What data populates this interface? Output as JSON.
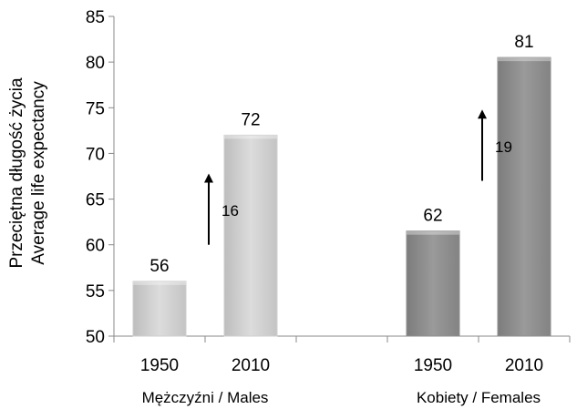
{
  "chart_data": {
    "type": "bar",
    "ylabel": [
      "Przeciętna długość życia",
      "Average life expectancy"
    ],
    "ylim": [
      50,
      85
    ],
    "yticks": [
      50,
      55,
      60,
      65,
      70,
      75,
      80,
      85
    ],
    "grid": false,
    "groups": [
      {
        "label": "Mężczyźni / Males",
        "color": "#cfcfcf",
        "bars": [
          {
            "category": "1950",
            "value": 56,
            "label": "56"
          },
          {
            "category": "2010",
            "value": 72,
            "label": "72"
          }
        ],
        "annotation": {
          "text": "16",
          "from": 60,
          "to": 67.5
        }
      },
      {
        "label": "Kobiety / Females",
        "color": "#8f8f8f",
        "bars": [
          {
            "category": "1950",
            "value": 61.5,
            "label": "62"
          },
          {
            "category": "2010",
            "value": 80.5,
            "label": "81"
          }
        ],
        "annotation": {
          "text": "19",
          "from": 67,
          "to": 74.5
        }
      }
    ]
  }
}
